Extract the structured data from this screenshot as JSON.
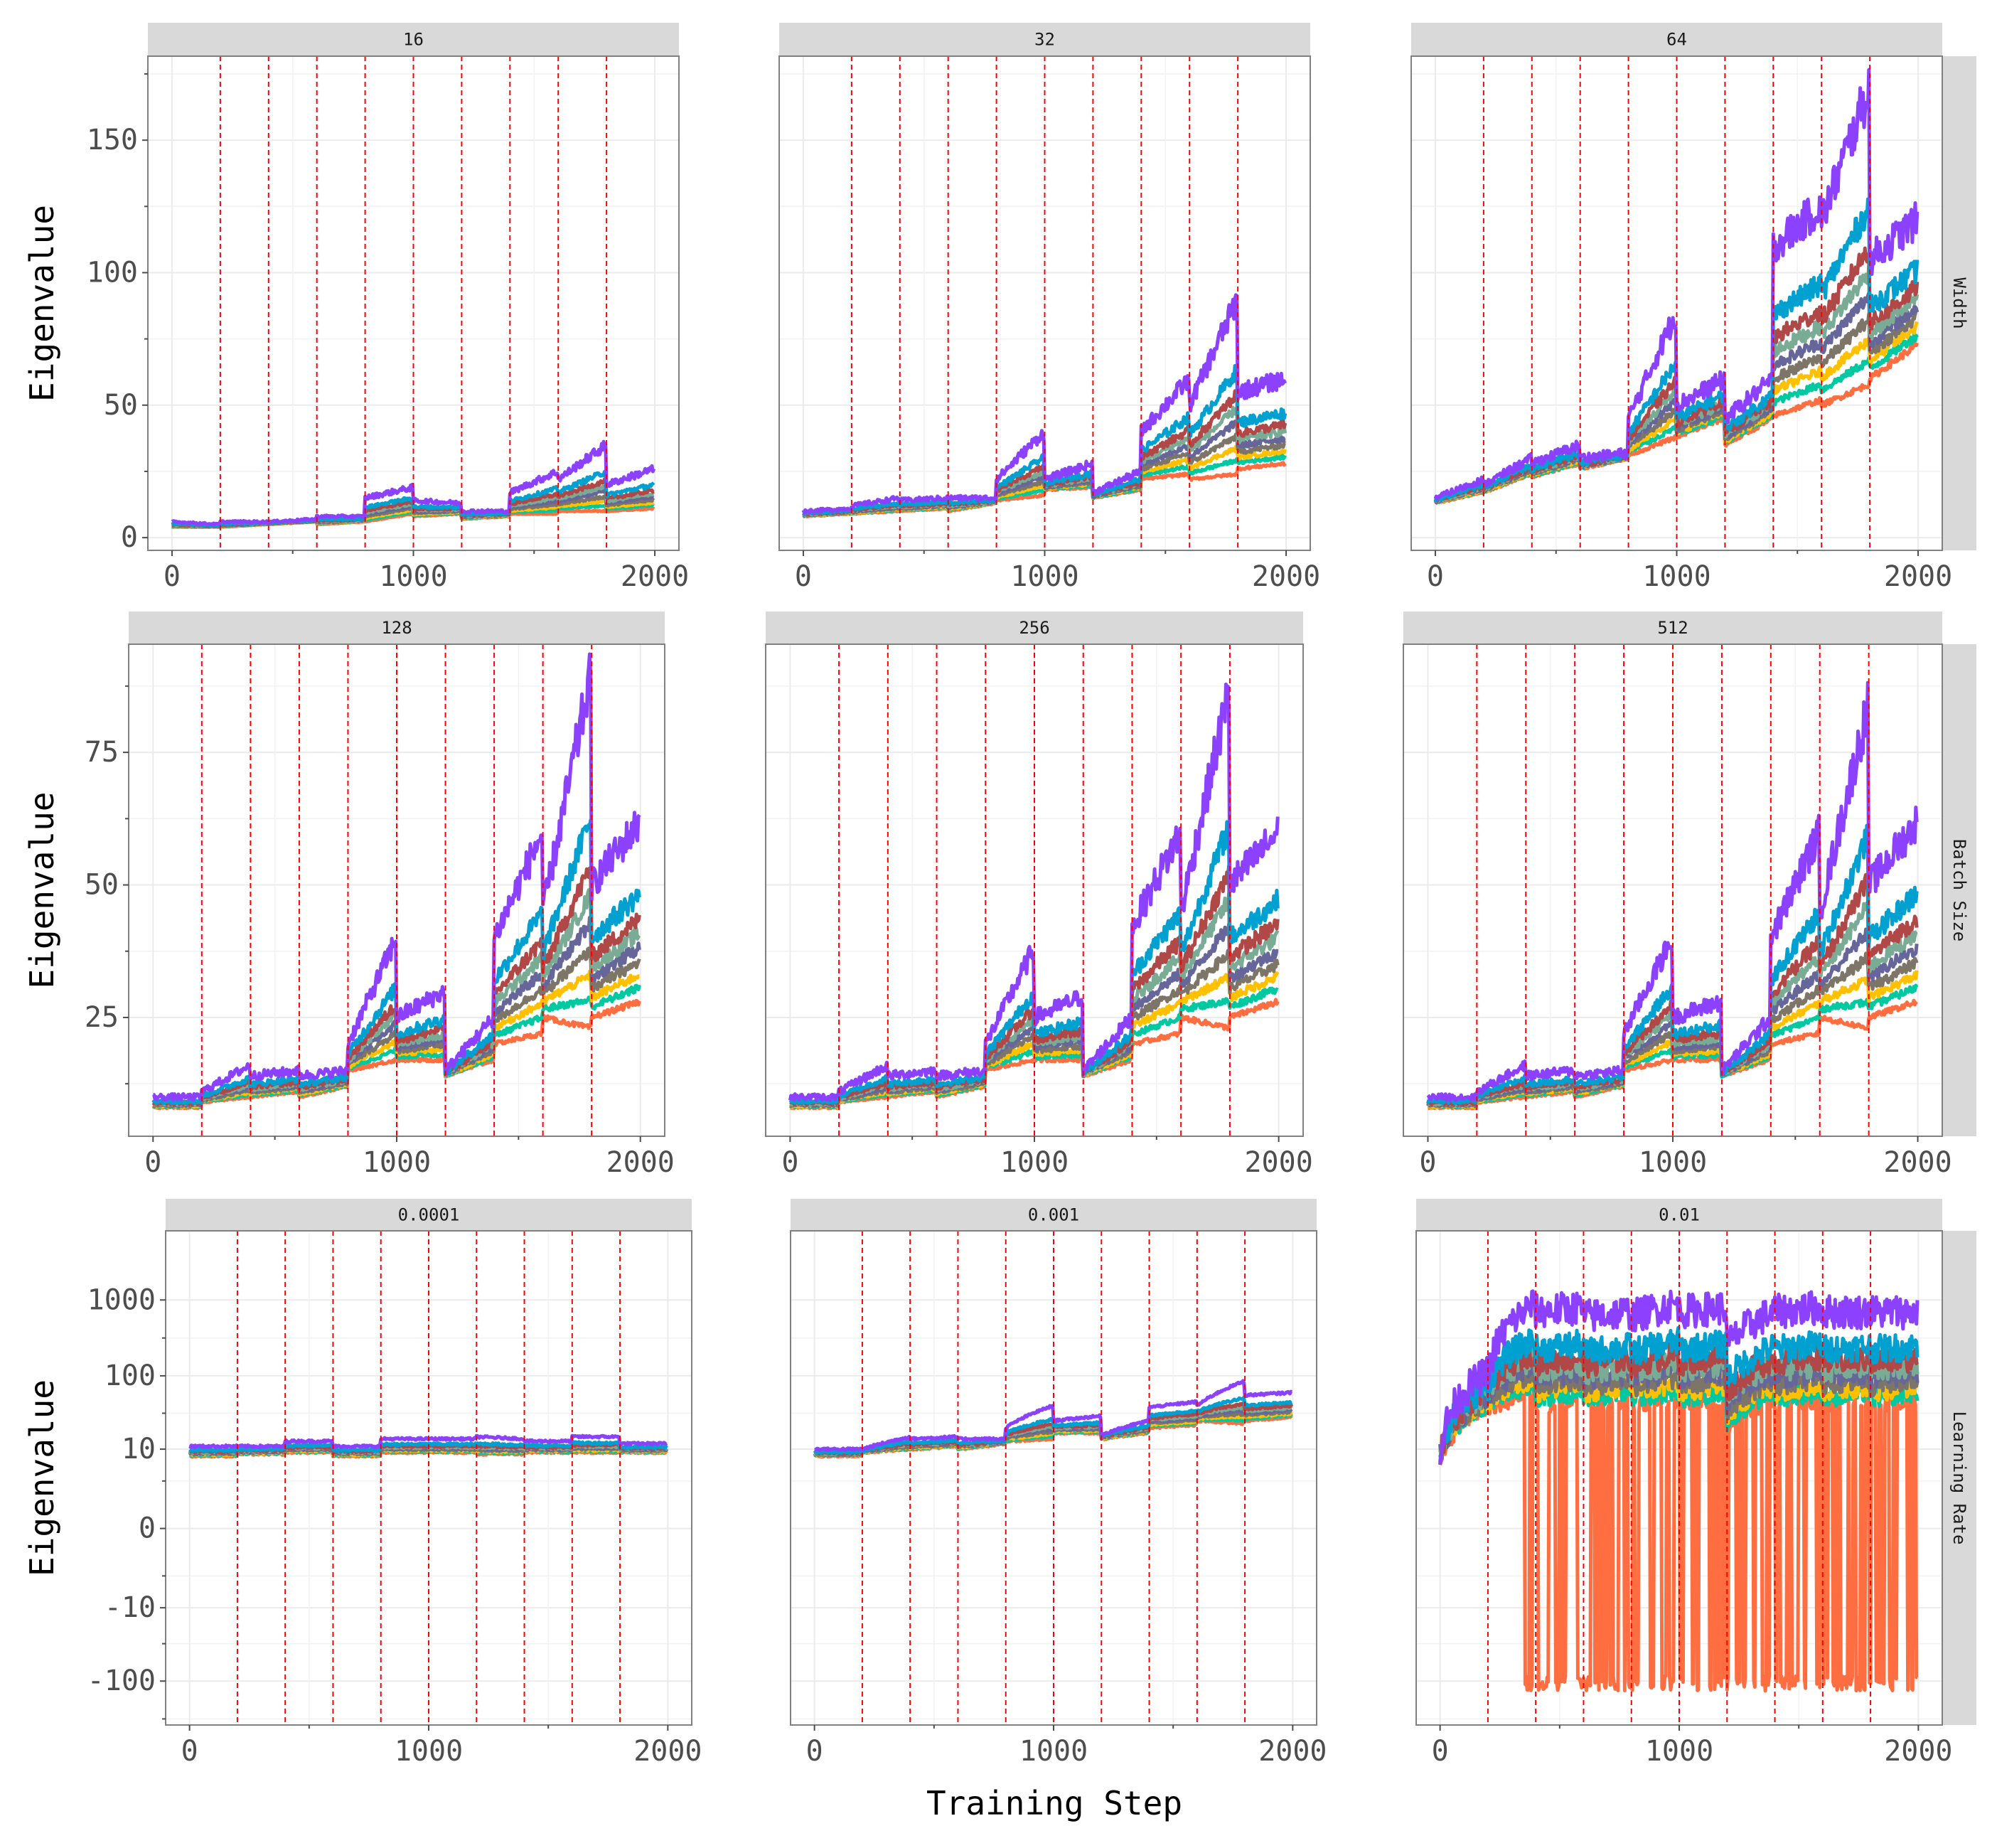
{
  "chart_data": {
    "type": "line",
    "title": "",
    "xlabel": "Training Step",
    "ylabel": "Eigenvalue",
    "xlim": [
      -100,
      2100
    ],
    "x_ticks": [
      0,
      1000,
      2000
    ],
    "x_tick_labels": [
      "0",
      "1000",
      "2000"
    ],
    "reset_steps": [
      200,
      400,
      600,
      800,
      1000,
      1200,
      1400,
      1600,
      1800
    ],
    "reset_line_color": "#ff0000",
    "sample_steps": [
      0,
      199,
      200,
      399,
      400,
      599,
      600,
      799,
      800,
      999,
      1000,
      1199,
      1200,
      1399,
      1400,
      1599,
      1600,
      1799,
      1800,
      1999
    ],
    "series": [
      {
        "color": "#8c41ff",
        "level": 1.0
      },
      {
        "color": "#00a0d0",
        "level": 0.6
      },
      {
        "color": "#b04848",
        "level": 0.46
      },
      {
        "color": "#7aab95",
        "level": 0.38
      },
      {
        "color": "#66669a",
        "level": 0.3
      },
      {
        "color": "#7d7668",
        "level": 0.22
      },
      {
        "color": "#ffc000",
        "level": 0.15
      },
      {
        "color": "#00c8a0",
        "level": 0.08
      },
      {
        "color": "#ff6e40",
        "level": 0.0
      }
    ],
    "rows": [
      {
        "label": "Width",
        "scale": "linear",
        "ylim": [
          -4.8,
          181.7
        ],
        "y_ticks": [
          0,
          50,
          100,
          150
        ],
        "y_tick_labels": [
          "0",
          "50",
          "100",
          "150"
        ],
        "y_minor": [
          25,
          75,
          125,
          175
        ],
        "panels": [
          {
            "label": "16",
            "upper": [
              6,
              5,
              6,
              6,
              6,
              7,
              8,
              8,
              15,
              19,
              14,
              13,
              10,
              10,
              17,
              25,
              22,
              35,
              20,
              26
            ],
            "lower": [
              4,
              4,
              4,
              5,
              5,
              6,
              5,
              6,
              6,
              9,
              8,
              9,
              7,
              8,
              9,
              9,
              10,
              10,
              10,
              11
            ]
          },
          {
            "label": "32",
            "upper": [
              10,
              11,
              12,
              15,
              14,
              15,
              15,
              15,
              22,
              40,
              22,
              28,
              17,
              25,
              40,
              60,
              50,
              90,
              55,
              60
            ],
            "lower": [
              8,
              9,
              9,
              10,
              10,
              11,
              10,
              13,
              14,
              16,
              18,
              19,
              15,
              18,
              22,
              24,
              22,
              24,
              26,
              28
            ]
          },
          {
            "label": "64",
            "upper": [
              15,
              22,
              20,
              30,
              28,
              35,
              30,
              32,
              45,
              85,
              50,
              60,
              45,
              60,
              110,
              125,
              120,
              170,
              105,
              120
            ],
            "lower": [
              13,
              17,
              17,
              24,
              23,
              28,
              26,
              30,
              31,
              38,
              38,
              45,
              35,
              45,
              46,
              52,
              50,
              58,
              60,
              73
            ]
          }
        ]
      },
      {
        "label": "Batch Size",
        "scale": "linear",
        "ylim": [
          2.6,
          95.4
        ],
        "y_ticks": [
          25,
          50,
          75
        ],
        "y_tick_labels": [
          "25",
          "50",
          "75"
        ],
        "y_minor": [
          12.5,
          37.5,
          62.5,
          87.5
        ],
        "panels": [
          {
            "label": "128",
            "upper": [
              10,
              10,
              11,
              16,
              14,
              15,
              14,
              15,
              20,
              40,
              25,
              30,
              15,
              25,
              40,
              60,
              45,
              90,
              50,
              62
            ],
            "lower": [
              8,
              8,
              9,
              10,
              10,
              11,
              10,
              12,
              15,
              17,
              17,
              17,
              14,
              17,
              20,
              22,
              25,
              23,
              25,
              28
            ]
          },
          {
            "label": "256",
            "upper": [
              10,
              10,
              11,
              16,
              14,
              15,
              14,
              15,
              20,
              38,
              25,
              29,
              15,
              25,
              42,
              60,
              45,
              87,
              50,
              60
            ],
            "lower": [
              8,
              8,
              9,
              10,
              10,
              11,
              10,
              12,
              15,
              17,
              17,
              17,
              14,
              17,
              20,
              22,
              25,
              23,
              25,
              28
            ]
          },
          {
            "label": "512",
            "upper": [
              10,
              10,
              11,
              16,
              14,
              15,
              14,
              15,
              22,
              40,
              25,
              28,
              15,
              25,
              40,
              60,
              45,
              84,
              50,
              62
            ],
            "lower": [
              8,
              8,
              9,
              10,
              10,
              11,
              10,
              12,
              15,
              17,
              17,
              17,
              14,
              17,
              20,
              22,
              25,
              23,
              25,
              28
            ]
          }
        ]
      },
      {
        "label": "Learning Rate",
        "scale": "symlog",
        "ylim": [
          -380,
          8100
        ],
        "y_ticks": [
          1000,
          100,
          10,
          0,
          -10,
          -100
        ],
        "y_tick_labels": [
          "1000",
          "100",
          "10",
          "0",
          "-10",
          "-100"
        ],
        "y_minor": [
          316,
          31.6,
          3.2,
          -3.2,
          -31.6,
          -316
        ],
        "panels": [
          {
            "label": "0.0001",
            "upper": [
              11,
              11,
              11,
              11,
              13,
              13,
              11,
              11,
              14,
              14,
              14,
              14,
              15,
              14,
              13,
              13,
              15,
              15,
              12,
              12
            ],
            "lower": [
              8,
              8,
              8.5,
              8.5,
              9,
              9,
              8,
              8,
              9,
              9,
              9,
              9,
              8.5,
              8.5,
              9,
              9,
              9,
              9,
              9,
              9
            ]
          },
          {
            "label": "0.001",
            "upper": [
              10,
              10,
              10,
              15,
              14,
              15,
              14,
              14,
              20,
              40,
              25,
              29,
              16,
              25,
              38,
              45,
              40,
              85,
              55,
              60
            ],
            "lower": [
              8,
              8,
              9,
              10,
              10,
              11,
              10,
              12,
              13,
              14,
              17,
              17,
              14,
              17,
              20,
              22,
              25,
              23,
              25,
              28
            ]
          },
          {
            "label": "0.01",
            "upper": [
              10,
              110,
              110,
              900,
              700,
              800,
              600,
              700,
              600,
              900,
              700,
              800,
              250,
              700,
              700,
              800,
              700,
              700,
              700,
              700
            ],
            "lower": [
              8,
              40,
              40,
              60,
              40,
              50,
              40,
              50,
              40,
              50,
              40,
              50,
              20,
              50,
              40,
              50,
              40,
              50,
              40,
              50
            ],
            "lowest_series_dips_to": -100,
            "dips_start_step": 350
          }
        ]
      }
    ]
  }
}
